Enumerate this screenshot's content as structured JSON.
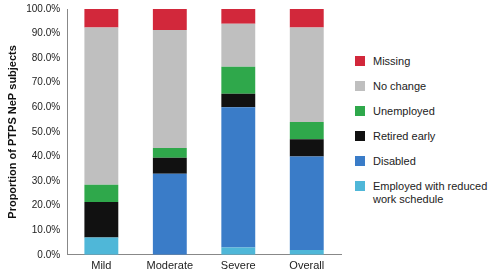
{
  "chart_data": {
    "type": "bar",
    "stacked": true,
    "grid": false,
    "legend": "right",
    "y_label": "Proportion of PTPS NeP subjects",
    "categories": [
      "Mild",
      "Moderate",
      "Severe",
      "Overall"
    ],
    "ylim": [
      0,
      100
    ],
    "yticks": [
      {
        "value": 0,
        "label": "0.0%"
      },
      {
        "value": 10,
        "label": "10.0%"
      },
      {
        "value": 20,
        "label": "20.0%"
      },
      {
        "value": 30,
        "label": "30.0%"
      },
      {
        "value": 40,
        "label": "40.0%"
      },
      {
        "value": 50,
        "label": "50.0%"
      },
      {
        "value": 60,
        "label": "60.0%"
      },
      {
        "value": 70,
        "label": "70.0%"
      },
      {
        "value": 80,
        "label": "80.0%"
      },
      {
        "value": 90,
        "label": "90.0%"
      },
      {
        "value": 100,
        "label": "100.0%"
      }
    ],
    "series": [
      {
        "name": "Employed with reduced work schedule",
        "color": "#4fb7d8",
        "values": [
          7,
          0,
          3,
          2
        ]
      },
      {
        "name": "Disabled",
        "color": "#3a7cc8",
        "values": [
          0,
          33,
          57,
          38
        ]
      },
      {
        "name": "Retired early",
        "color": "#111111",
        "values": [
          14.5,
          6.5,
          5.5,
          7
        ]
      },
      {
        "name": "Unemployed",
        "color": "#2fa84b",
        "values": [
          7,
          4,
          11,
          7
        ]
      },
      {
        "name": "No change",
        "color": "#bfbfbf",
        "values": [
          64,
          48,
          17.5,
          38.5
        ]
      },
      {
        "name": "Missing",
        "color": "#d2283b",
        "values": [
          7.5,
          8.5,
          6,
          7.5
        ]
      }
    ]
  }
}
